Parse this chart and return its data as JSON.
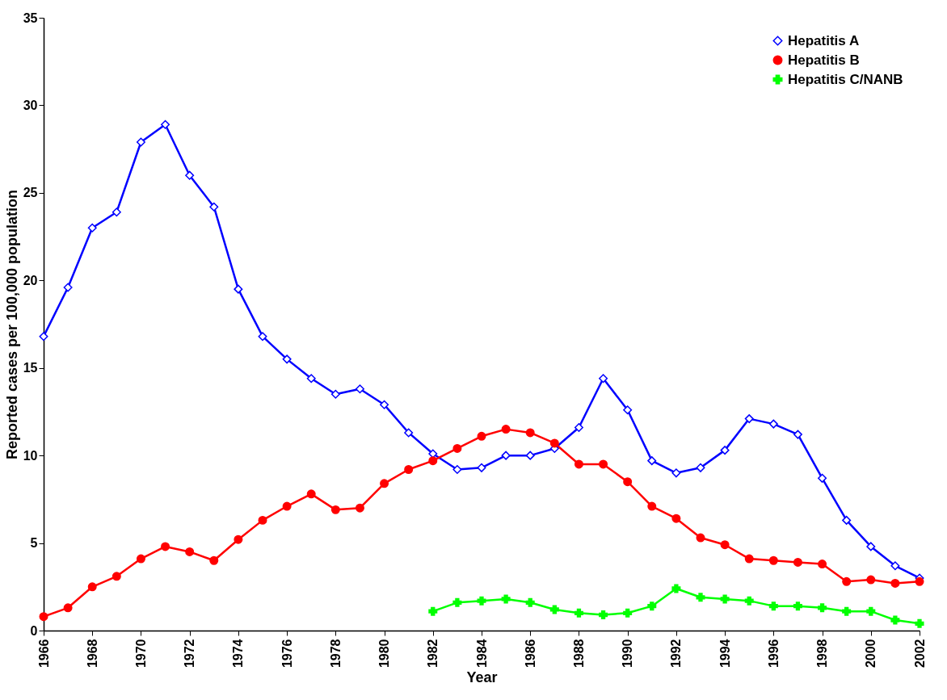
{
  "chart_data": {
    "type": "line",
    "xlabel": "Year",
    "ylabel": "Reported cases per 100,000 population",
    "x": [
      1966,
      1967,
      1968,
      1969,
      1970,
      1971,
      1972,
      1973,
      1974,
      1975,
      1976,
      1977,
      1978,
      1979,
      1980,
      1981,
      1982,
      1983,
      1984,
      1985,
      1986,
      1987,
      1988,
      1989,
      1990,
      1991,
      1992,
      1993,
      1994,
      1995,
      1996,
      1997,
      1998,
      1999,
      2000,
      2001,
      2002
    ],
    "series": [
      {
        "name": "Hepatitis A",
        "color": "#0000ff",
        "marker": "diamond",
        "values": [
          16.8,
          19.6,
          23.0,
          23.9,
          27.9,
          28.9,
          26.0,
          24.2,
          19.5,
          16.8,
          15.5,
          14.4,
          13.5,
          13.8,
          12.9,
          11.3,
          10.1,
          9.2,
          9.3,
          10.0,
          10.0,
          10.4,
          11.6,
          14.4,
          12.6,
          9.7,
          9.0,
          9.3,
          10.3,
          12.1,
          11.8,
          11.2,
          8.7,
          6.3,
          4.8,
          3.7,
          3.0
        ]
      },
      {
        "name": "Hepatitis B",
        "color": "#ff0000",
        "marker": "circle",
        "values": [
          0.8,
          1.3,
          2.5,
          3.1,
          4.1,
          4.8,
          4.5,
          4.0,
          5.2,
          6.3,
          7.1,
          7.8,
          6.9,
          7.0,
          8.4,
          9.2,
          9.7,
          10.4,
          11.1,
          11.5,
          11.3,
          10.7,
          9.5,
          9.5,
          8.5,
          7.1,
          6.4,
          5.3,
          4.9,
          4.1,
          4.0,
          3.9,
          3.8,
          2.8,
          2.9,
          2.7,
          2.8
        ]
      },
      {
        "name": "Hepatitis C/NANB",
        "color": "#00ff00",
        "marker": "cross",
        "values": [
          null,
          null,
          null,
          null,
          null,
          null,
          null,
          null,
          null,
          null,
          null,
          null,
          null,
          null,
          null,
          null,
          1.1,
          1.6,
          1.7,
          1.8,
          1.6,
          1.2,
          1.0,
          0.9,
          1.0,
          1.4,
          2.4,
          1.9,
          1.8,
          1.7,
          1.4,
          1.4,
          1.3,
          1.1,
          1.1,
          0.6,
          0.4
        ]
      }
    ],
    "xlim": [
      1966,
      2002
    ],
    "xticks": [
      1966,
      1968,
      1970,
      1972,
      1974,
      1976,
      1978,
      1980,
      1982,
      1984,
      1986,
      1988,
      1990,
      1992,
      1994,
      1996,
      1998,
      2000,
      2002
    ],
    "ylim": [
      0,
      35
    ],
    "yticks": [
      0,
      5,
      10,
      15,
      20,
      25,
      30,
      35
    ],
    "grid": false,
    "legend": "top right",
    "line_style": "solid"
  }
}
